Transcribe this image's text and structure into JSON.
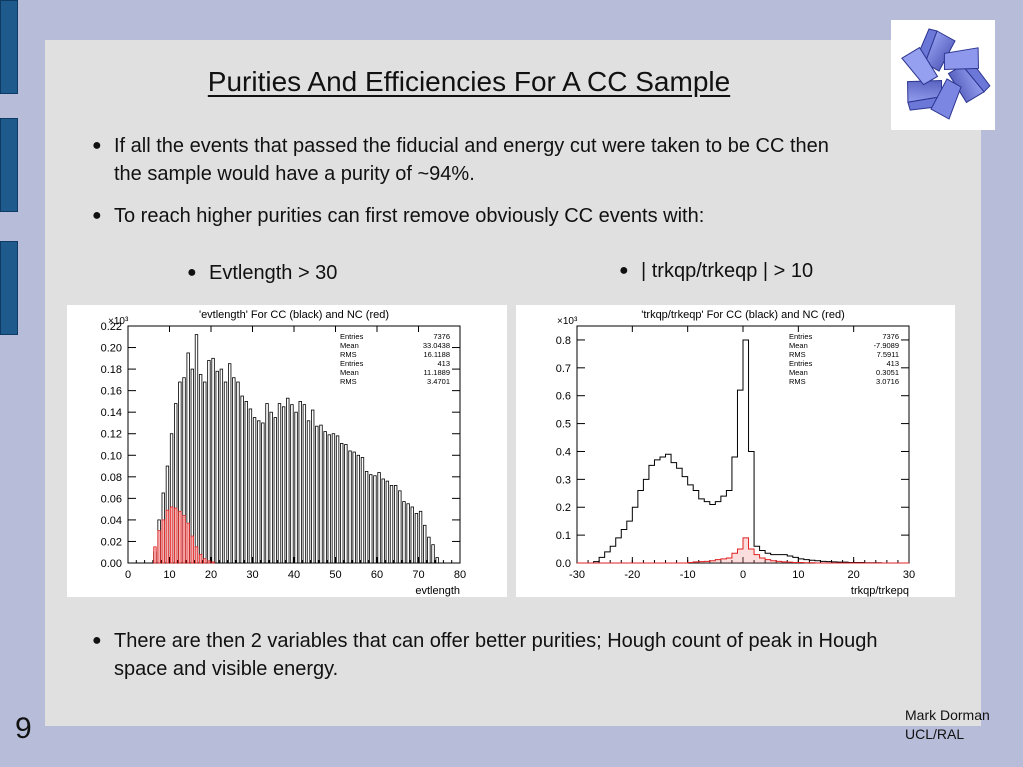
{
  "title": "Purities And Efficiencies For A CC Sample",
  "bullets": {
    "b1": "If all the events that passed the fiducial and energy cut were taken to be CC then the sample would have a purity of ~94%.",
    "b2": "To reach higher purities can first remove obviously CC events with:",
    "sub1": "Evtlength > 30",
    "sub2": "| trkqp/trkeqp | > 10",
    "b3": "There are then 2 variables that can offer better purities; Hough count of peak in Hough space and visible energy."
  },
  "bullet_glyph": "●",
  "footer": {
    "author": "Mark Dorman",
    "affiliation": "UCL/RAL",
    "slide_number": "9"
  },
  "logo": {
    "icon": "star-of-david-3d-logo-icon",
    "color": "#5a6ad0"
  },
  "colors": {
    "background": "#b7bcd9",
    "panel": "#e0e0e0",
    "tabs": "#1f5a8c",
    "cc": "#000000",
    "nc": "#e02020"
  },
  "chart_data": [
    {
      "type": "bar",
      "title": "'evtlength' For CC (black) and NC (red)",
      "xlabel": "evtlength",
      "ylabel": "",
      "y_multiplier": "×10³",
      "xlim": [
        0,
        80
      ],
      "ylim": [
        0,
        0.22
      ],
      "xticks": [
        "0",
        "10",
        "20",
        "30",
        "40",
        "50",
        "60",
        "70",
        "80"
      ],
      "yticks": [
        "0.00",
        "0.02",
        "0.04",
        "0.06",
        "0.08",
        "0.10",
        "0.12",
        "0.14",
        "0.16",
        "0.18",
        "0.20",
        "0.22"
      ],
      "bin_start": 6,
      "bin_width": 1,
      "series": [
        {
          "name": "CC (black)",
          "color": "#000000",
          "values": [
            0.01,
            0.04,
            0.065,
            0.09,
            0.12,
            0.148,
            0.168,
            0.172,
            0.195,
            0.18,
            0.212,
            0.175,
            0.168,
            0.188,
            0.19,
            0.178,
            0.18,
            0.168,
            0.185,
            0.172,
            0.168,
            0.155,
            0.15,
            0.143,
            0.135,
            0.132,
            0.13,
            0.148,
            0.14,
            0.135,
            0.148,
            0.145,
            0.153,
            0.147,
            0.14,
            0.15,
            0.147,
            0.132,
            0.142,
            0.127,
            0.128,
            0.122,
            0.119,
            0.12,
            0.118,
            0.111,
            0.11,
            0.104,
            0.103,
            0.1,
            0.098,
            0.085,
            0.082,
            0.081,
            0.084,
            0.078,
            0.076,
            0.072,
            0.072,
            0.067,
            0.057,
            0.055,
            0.052,
            0.046,
            0.048,
            0.035,
            0.024,
            0.017,
            0.005
          ]
        },
        {
          "name": "NC (red)",
          "color": "#e02020",
          "values": [
            0.015,
            0.03,
            0.04,
            0.049,
            0.052,
            0.051,
            0.048,
            0.044,
            0.037,
            0.025,
            0.015,
            0.008,
            0.004,
            0.002,
            0.001,
            0,
            0,
            0,
            0,
            0,
            0,
            0,
            0,
            0,
            0,
            0,
            0,
            0,
            0,
            0,
            0,
            0,
            0,
            0,
            0,
            0,
            0,
            0,
            0,
            0,
            0,
            0,
            0,
            0,
            0,
            0,
            0,
            0,
            0,
            0,
            0,
            0,
            0,
            0,
            0,
            0,
            0,
            0,
            0,
            0,
            0,
            0,
            0,
            0,
            0,
            0,
            0,
            0,
            0
          ]
        }
      ],
      "stats": [
        [
          "Entries",
          "7376"
        ],
        [
          "Mean",
          "33.0438"
        ],
        [
          "RMS",
          "16.1188"
        ],
        [
          "Entries",
          "413"
        ],
        [
          "Mean",
          "11.1889"
        ],
        [
          "RMS",
          "3.4701"
        ]
      ]
    },
    {
      "type": "line",
      "title": "'trkqp/trkeqp' For CC (black) and NC (red)",
      "xlabel": "trkqp/trkepq",
      "ylabel": "",
      "y_multiplier": "×10³",
      "xlim": [
        -30,
        30
      ],
      "ylim": [
        0,
        0.85
      ],
      "xticks": [
        "-30",
        "-20",
        "-10",
        "0",
        "10",
        "20",
        "30"
      ],
      "yticks": [
        "0.0",
        "0.1",
        "0.2",
        "0.3",
        "0.4",
        "0.5",
        "0.6",
        "0.7",
        "0.8"
      ],
      "x_step": {
        "x": [
          -30,
          -29,
          -28,
          -27,
          -26,
          -25,
          -24,
          -23,
          -22,
          -21,
          -20,
          -19,
          -18,
          -17,
          -16,
          -15,
          -14,
          -13,
          -12,
          -11,
          -10,
          -9,
          -8,
          -7,
          -6,
          -5,
          -4,
          -3,
          -2,
          -1,
          0,
          1,
          2,
          3,
          4,
          5,
          6,
          7,
          8,
          9,
          10,
          11,
          12,
          13,
          14,
          15,
          16,
          17,
          18,
          19,
          20,
          21,
          22,
          23,
          24,
          25,
          26,
          27,
          28,
          29
        ]
      },
      "series": [
        {
          "name": "CC (black)",
          "color": "#000000",
          "values": [
            0,
            0,
            0,
            0.005,
            0.02,
            0.04,
            0.06,
            0.09,
            0.12,
            0.15,
            0.2,
            0.26,
            0.3,
            0.35,
            0.37,
            0.38,
            0.39,
            0.36,
            0.34,
            0.31,
            0.28,
            0.26,
            0.23,
            0.22,
            0.21,
            0.22,
            0.24,
            0.26,
            0.38,
            0.62,
            0.8,
            0.4,
            0.06,
            0.045,
            0.035,
            0.03,
            0.03,
            0.03,
            0.025,
            0.02,
            0.015,
            0.012,
            0.01,
            0.008,
            0.006,
            0.005,
            0.004,
            0.003,
            0.003,
            0.002,
            0.002,
            0.002,
            0.001,
            0.001,
            0.001,
            0,
            0,
            0,
            0,
            0
          ]
        },
        {
          "name": "NC (red)",
          "color": "#e02020",
          "values": [
            0,
            0,
            0,
            0,
            0,
            0,
            0,
            0,
            0,
            0,
            0,
            0,
            0,
            0,
            0,
            0,
            0,
            0,
            0,
            0,
            0.002,
            0.004,
            0.005,
            0.006,
            0.008,
            0.012,
            0.015,
            0.018,
            0.035,
            0.05,
            0.09,
            0.05,
            0.03,
            0.018,
            0.012,
            0.008,
            0.006,
            0.004,
            0.003,
            0.002,
            0.002,
            0.001,
            0.001,
            0,
            0,
            0,
            0,
            0,
            0,
            0,
            0,
            0,
            0,
            0,
            0,
            0,
            0,
            0,
            0,
            0
          ]
        }
      ],
      "stats": [
        [
          "Entries",
          "7376"
        ],
        [
          "Mean",
          "-7.9089"
        ],
        [
          "RMS",
          "7.5911"
        ],
        [
          "Entries",
          "413"
        ],
        [
          "Mean",
          "0.3051"
        ],
        [
          "RMS",
          "3.0716"
        ]
      ]
    }
  ]
}
